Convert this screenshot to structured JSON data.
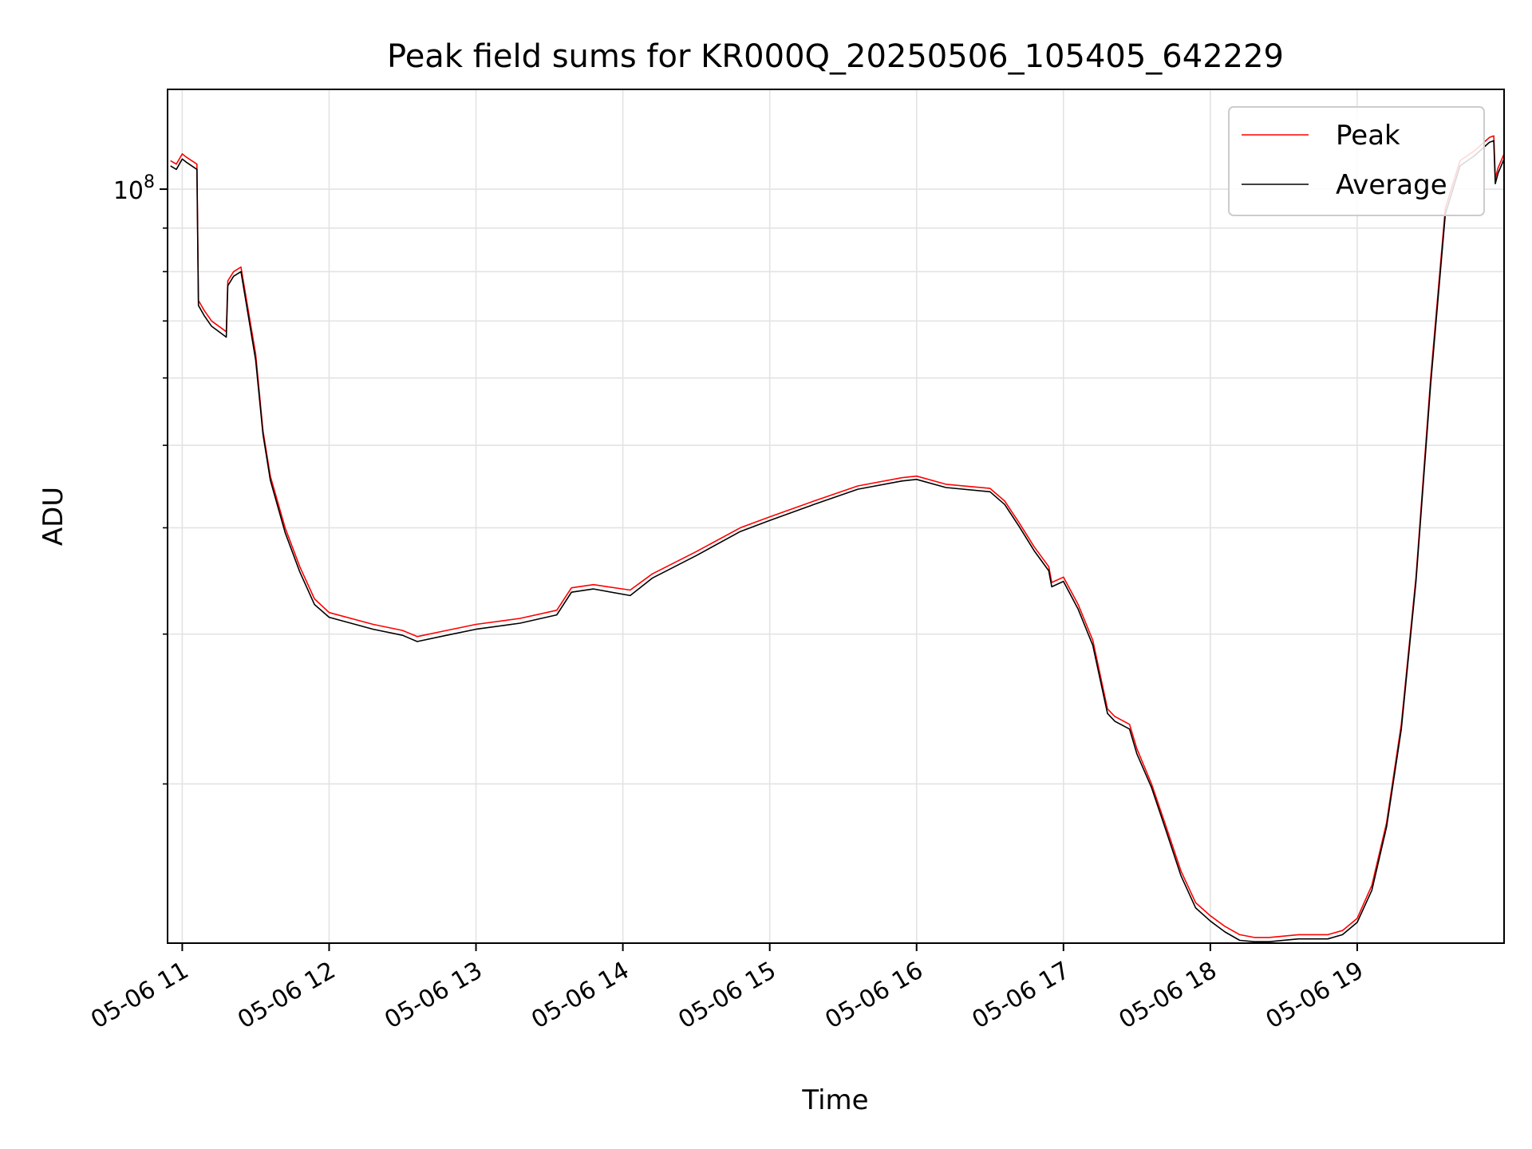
{
  "chart_data": {
    "type": "line",
    "title": "Peak field sums for KR000Q_20250506_105405_642229",
    "xlabel": "Time",
    "ylabel": "ADU",
    "y_scale": "log",
    "grid": true,
    "legend_position": "top-right",
    "x_time_unit": "hour",
    "xlim": [
      10.9,
      20.0
    ],
    "ylim": [
      13000000,
      131000000
    ],
    "x_ticks": [
      {
        "value": 11,
        "label": "05-06 11"
      },
      {
        "value": 12,
        "label": "05-06 12"
      },
      {
        "value": 13,
        "label": "05-06 13"
      },
      {
        "value": 14,
        "label": "05-06 14"
      },
      {
        "value": 15,
        "label": "05-06 15"
      },
      {
        "value": 16,
        "label": "05-06 16"
      },
      {
        "value": 17,
        "label": "05-06 17"
      },
      {
        "value": 18,
        "label": "05-06 18"
      },
      {
        "value": 19,
        "label": "05-06 19"
      }
    ],
    "y_major_ticks": [
      {
        "value": 100000000,
        "label_base": "10",
        "label_exp": "8"
      }
    ],
    "y_minor_ticks": [
      20000000,
      30000000,
      40000000,
      50000000,
      60000000,
      70000000,
      80000000,
      90000000
    ],
    "series": [
      {
        "name": "Peak",
        "color": "#ff0000",
        "x": [
          10.92,
          10.96,
          11.0,
          11.03,
          11.1,
          11.11,
          11.15,
          11.2,
          11.3,
          11.31,
          11.35,
          11.4,
          11.45,
          11.5,
          11.55,
          11.6,
          11.7,
          11.8,
          11.9,
          12.0,
          12.3,
          12.5,
          12.6,
          12.8,
          13.0,
          13.3,
          13.55,
          13.65,
          13.8,
          14.05,
          14.2,
          14.5,
          14.8,
          15.0,
          15.3,
          15.6,
          15.9,
          16.0,
          16.2,
          16.5,
          16.6,
          16.7,
          16.8,
          16.9,
          16.92,
          17.0,
          17.1,
          17.2,
          17.3,
          17.35,
          17.45,
          17.5,
          17.6,
          17.7,
          17.8,
          17.9,
          18.0,
          18.1,
          18.2,
          18.3,
          18.4,
          18.6,
          18.8,
          18.9,
          19.0,
          19.1,
          19.2,
          19.3,
          19.4,
          19.5,
          19.6,
          19.7,
          19.8,
          19.85,
          19.9,
          19.93,
          19.94,
          19.96,
          20.0
        ],
        "y": [
          108000000,
          107000000,
          110000000,
          109000000,
          107000000,
          74000000,
          72000000,
          70000000,
          68000000,
          78000000,
          80000000,
          81000000,
          72000000,
          64000000,
          52000000,
          46000000,
          40000000,
          36000000,
          33000000,
          31800000,
          30800000,
          30300000,
          29800000,
          30300000,
          30800000,
          31300000,
          32000000,
          34000000,
          34300000,
          33800000,
          35300000,
          37500000,
          40000000,
          41200000,
          43000000,
          44800000,
          45800000,
          46000000,
          45000000,
          44500000,
          43000000,
          40500000,
          38000000,
          36000000,
          34500000,
          35000000,
          32500000,
          29500000,
          24500000,
          24000000,
          23500000,
          22000000,
          20000000,
          17800000,
          15800000,
          14500000,
          14000000,
          13600000,
          13300000,
          13200000,
          13200000,
          13300000,
          13300000,
          13450000,
          13900000,
          15200000,
          18000000,
          23500000,
          35000000,
          60000000,
          95000000,
          108000000,
          111000000,
          113000000,
          115000000,
          115500000,
          103000000,
          106000000,
          110000000
        ]
      },
      {
        "name": "Average",
        "color": "#000000",
        "x": [
          10.92,
          10.96,
          11.0,
          11.03,
          11.1,
          11.11,
          11.15,
          11.2,
          11.3,
          11.31,
          11.35,
          11.4,
          11.45,
          11.5,
          11.55,
          11.6,
          11.7,
          11.8,
          11.9,
          12.0,
          12.3,
          12.5,
          12.6,
          12.8,
          13.0,
          13.3,
          13.55,
          13.65,
          13.8,
          14.05,
          14.2,
          14.5,
          14.8,
          15.0,
          15.3,
          15.6,
          15.9,
          16.0,
          16.2,
          16.5,
          16.6,
          16.7,
          16.8,
          16.9,
          16.92,
          17.0,
          17.1,
          17.2,
          17.3,
          17.35,
          17.45,
          17.5,
          17.6,
          17.7,
          17.8,
          17.9,
          18.0,
          18.1,
          18.2,
          18.3,
          18.4,
          18.6,
          18.8,
          18.9,
          19.0,
          19.1,
          19.2,
          19.3,
          19.4,
          19.5,
          19.6,
          19.7,
          19.8,
          19.85,
          19.9,
          19.93,
          19.94,
          19.96,
          20.0
        ],
        "y": [
          106500000,
          105500000,
          108500000,
          107500000,
          105500000,
          73000000,
          71000000,
          69000000,
          67000000,
          77000000,
          79000000,
          80000000,
          71000000,
          63000000,
          51500000,
          45500000,
          39500000,
          35500000,
          32500000,
          31400000,
          30400000,
          29900000,
          29400000,
          29900000,
          30400000,
          30900000,
          31600000,
          33600000,
          33900000,
          33300000,
          34900000,
          37100000,
          39600000,
          40800000,
          42600000,
          44400000,
          45400000,
          45600000,
          44600000,
          44100000,
          42600000,
          40100000,
          37600000,
          35600000,
          34100000,
          34600000,
          32100000,
          29100000,
          24200000,
          23700000,
          23200000,
          21700000,
          19800000,
          17600000,
          15600000,
          14300000,
          13800000,
          13400000,
          13100000,
          13050000,
          13050000,
          13150000,
          13150000,
          13300000,
          13750000,
          15000000,
          17800000,
          23200000,
          34600000,
          59000000,
          93500000,
          106500000,
          109500000,
          111500000,
          113500000,
          114000000,
          101500000,
          104500000,
          108500000
        ]
      }
    ]
  }
}
